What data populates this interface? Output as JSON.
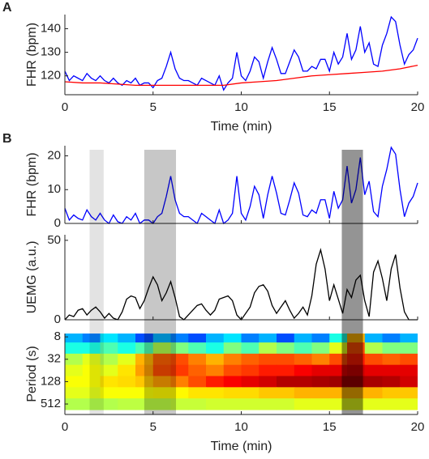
{
  "chart_data": [
    {
      "type": "line",
      "panel_label": "A",
      "ylabel": "FHR (bpm)",
      "xlabel": "Time (min)",
      "show_xtick_labels": true,
      "xlim": [
        0,
        20
      ],
      "xticks": [
        0,
        5,
        10,
        15,
        20
      ],
      "ylim": [
        112,
        146
      ],
      "yticks": [
        120,
        130,
        140
      ],
      "series": [
        {
          "color": "#0000ff",
          "x": [
            0,
            0.25,
            0.5,
            0.75,
            1,
            1.25,
            1.5,
            1.75,
            2,
            2.25,
            2.5,
            2.75,
            3,
            3.25,
            3.5,
            3.75,
            4,
            4.25,
            4.5,
            4.75,
            5,
            5.25,
            5.5,
            5.75,
            6,
            6.25,
            6.5,
            6.75,
            7,
            7.25,
            7.5,
            7.75,
            8,
            8.25,
            8.5,
            8.75,
            9,
            9.25,
            9.5,
            9.75,
            10,
            10.25,
            10.5,
            10.75,
            11,
            11.25,
            11.5,
            11.75,
            12,
            12.25,
            12.5,
            12.75,
            13,
            13.25,
            13.5,
            13.75,
            14,
            14.25,
            14.5,
            14.75,
            15,
            15.25,
            15.5,
            15.75,
            16,
            16.25,
            16.5,
            16.75,
            17,
            17.25,
            17.5,
            17.75,
            18,
            18.25,
            18.5,
            18.75,
            19,
            19.25,
            19.5,
            19.75,
            20
          ],
          "values": [
            122,
            118,
            120,
            119,
            118,
            121,
            119,
            118,
            120,
            118,
            117,
            119,
            117,
            116,
            118,
            117,
            119,
            116,
            117,
            117,
            115,
            118,
            119,
            124,
            130,
            123,
            119,
            118,
            118,
            117,
            116,
            119,
            118,
            117,
            116,
            120,
            114,
            117,
            119,
            130,
            120,
            118,
            122,
            128,
            126,
            119,
            126,
            132,
            127,
            121,
            121,
            126,
            131,
            128,
            122,
            122,
            124,
            123,
            127,
            127,
            122,
            130,
            125,
            128,
            138,
            127,
            131,
            141,
            130,
            134,
            125,
            124,
            133,
            138,
            145,
            143,
            133,
            125,
            129,
            131,
            136
          ]
        },
        {
          "color": "#ff0000",
          "x": [
            0,
            1,
            2,
            3,
            4,
            5,
            6,
            7,
            8,
            9,
            10,
            11,
            12,
            13,
            14,
            15,
            16,
            17,
            18,
            19,
            20
          ],
          "values": [
            117.5,
            117,
            117,
            116.5,
            116,
            116,
            116,
            116,
            116,
            116,
            117,
            117.5,
            118,
            119,
            120,
            120.5,
            121,
            121.5,
            122,
            123,
            124.5
          ]
        }
      ]
    },
    {
      "type": "line",
      "panel_label": "B",
      "ylabel": "FHR (bpm)",
      "show_xtick_labels": false,
      "xlim": [
        0,
        20
      ],
      "xticks": [
        0,
        5,
        10,
        15,
        20
      ],
      "ylim": [
        0,
        23
      ],
      "yticks": [
        0,
        10,
        20
      ],
      "highlights": [
        {
          "start": 1.4,
          "end": 2.2,
          "opacity": 0.11
        },
        {
          "start": 4.5,
          "end": 6.3,
          "opacity": 0.22
        },
        {
          "start": 15.7,
          "end": 16.9,
          "opacity": 0.42
        }
      ],
      "series": [
        {
          "color": "#0000ff",
          "x": [
            0,
            0.25,
            0.5,
            0.75,
            1,
            1.25,
            1.5,
            1.75,
            2,
            2.25,
            2.5,
            2.75,
            3,
            3.25,
            3.5,
            3.75,
            4,
            4.25,
            4.5,
            4.75,
            5,
            5.25,
            5.5,
            5.75,
            6,
            6.25,
            6.5,
            6.75,
            7,
            7.25,
            7.5,
            7.75,
            8,
            8.25,
            8.5,
            8.75,
            9,
            9.25,
            9.5,
            9.75,
            10,
            10.25,
            10.5,
            10.75,
            11,
            11.25,
            11.5,
            11.75,
            12,
            12.25,
            12.5,
            12.75,
            13,
            13.25,
            13.5,
            13.75,
            14,
            14.25,
            14.5,
            14.75,
            15,
            15.25,
            15.5,
            15.75,
            16,
            16.25,
            16.5,
            16.75,
            17,
            17.25,
            17.5,
            17.75,
            18,
            18.25,
            18.5,
            18.75,
            19,
            19.25,
            19.5,
            19.75,
            20
          ],
          "values": [
            4.5,
            1,
            2.5,
            1.5,
            1,
            4,
            2,
            1,
            3,
            1,
            0,
            2.5,
            0.5,
            0,
            2,
            1,
            3,
            0,
            1,
            1,
            0,
            2,
            3,
            8,
            14,
            7,
            3,
            2,
            2,
            1,
            0,
            3,
            2,
            1,
            0,
            4,
            0,
            1,
            3,
            14,
            3,
            1,
            5,
            11,
            8.5,
            1.5,
            8.5,
            14,
            9,
            3,
            2.5,
            7,
            12,
            9,
            2.5,
            2,
            4,
            3,
            7,
            7,
            1.5,
            9.5,
            4.5,
            7,
            17,
            6,
            10,
            19.5,
            8.5,
            12.5,
            3.5,
            2,
            11,
            16,
            22.5,
            20.5,
            10,
            2,
            6,
            8,
            12
          ]
        }
      ]
    },
    {
      "type": "line",
      "ylabel": "UEMG (a.u.)",
      "show_xtick_labels": false,
      "xlim": [
        0,
        20
      ],
      "xticks": [
        0,
        5,
        10,
        15,
        20
      ],
      "ylim": [
        0,
        53.5
      ],
      "yticks": [
        0,
        50
      ],
      "series": [
        {
          "color": "#000000",
          "x": [
            0,
            0.25,
            0.5,
            0.75,
            1,
            1.25,
            1.5,
            1.75,
            2,
            2.25,
            2.5,
            2.75,
            3,
            3.25,
            3.5,
            3.75,
            4,
            4.25,
            4.5,
            4.75,
            5,
            5.25,
            5.5,
            5.75,
            6,
            6.25,
            6.5,
            6.75,
            7,
            7.25,
            7.5,
            7.75,
            8,
            8.25,
            8.5,
            8.75,
            9,
            9.25,
            9.5,
            9.75,
            10,
            10.25,
            10.5,
            10.75,
            11,
            11.25,
            11.5,
            11.75,
            12,
            12.25,
            12.5,
            12.75,
            13,
            13.25,
            13.5,
            13.75,
            14,
            14.25,
            14.5,
            14.75,
            15,
            15.25,
            15.5,
            15.75,
            16,
            16.25,
            16.5,
            16.75,
            17,
            17.25,
            17.5,
            17.75,
            18,
            18.25,
            18.5,
            18.75,
            19,
            19.25,
            19.5,
            19.75,
            20
          ],
          "values": [
            0,
            3,
            2,
            6,
            7,
            3,
            6,
            8,
            5,
            1,
            4,
            1,
            0,
            5,
            13,
            15,
            14,
            7,
            12,
            20,
            27,
            22,
            12,
            17,
            24,
            14,
            2,
            0,
            3,
            6,
            9,
            10,
            6,
            3,
            6,
            13,
            14,
            15,
            12,
            3,
            0,
            4,
            8,
            17,
            21,
            22,
            18,
            9,
            4,
            8,
            12,
            6,
            1,
            4,
            8,
            3,
            15,
            35,
            44,
            32,
            12,
            22,
            13,
            4,
            19,
            14,
            25,
            28,
            12,
            2,
            30,
            37,
            26,
            12,
            32,
            41,
            20,
            5,
            0,
            0,
            0
          ]
        }
      ]
    },
    {
      "type": "heatmap",
      "ylabel": "Period (s)",
      "xlabel": "Time (min)",
      "show_xtick_labels": true,
      "log": true,
      "yreverse": true,
      "xlim": [
        0,
        20
      ],
      "xticks": [
        0,
        5,
        10,
        15,
        20
      ],
      "ylim": [
        6.5,
        980
      ],
      "yticks": [
        8,
        32,
        128,
        512
      ],
      "x_edges": [
        0,
        1,
        2,
        3,
        4,
        5,
        6,
        7,
        8,
        9,
        10,
        11,
        12,
        13,
        14,
        15,
        16,
        17,
        18,
        19,
        20
      ],
      "periods": [
        8,
        16,
        32,
        64,
        128,
        256,
        512
      ],
      "z": [
        [
          0.3,
          0.25,
          0.35,
          0.3,
          0.2,
          0.3,
          0.25,
          0.2,
          0.3,
          0.35,
          0.25,
          0.3,
          0.2,
          0.3,
          0.25,
          0.4,
          0.7,
          0.3,
          0.25,
          0.3
        ],
        [
          0.4,
          0.4,
          0.45,
          0.4,
          0.45,
          0.55,
          0.5,
          0.45,
          0.4,
          0.5,
          0.45,
          0.55,
          0.5,
          0.45,
          0.5,
          0.6,
          0.8,
          0.55,
          0.5,
          0.5
        ],
        [
          0.55,
          0.6,
          0.55,
          0.6,
          0.7,
          0.78,
          0.8,
          0.75,
          0.7,
          0.75,
          0.78,
          0.8,
          0.8,
          0.78,
          0.75,
          0.8,
          0.85,
          0.8,
          0.78,
          0.8
        ],
        [
          0.6,
          0.62,
          0.6,
          0.65,
          0.72,
          0.8,
          0.82,
          0.78,
          0.75,
          0.8,
          0.82,
          0.85,
          0.85,
          0.88,
          0.9,
          0.9,
          0.92,
          0.9,
          0.9,
          0.9
        ],
        [
          0.62,
          0.62,
          0.65,
          0.66,
          0.68,
          0.72,
          0.75,
          0.8,
          0.85,
          0.88,
          0.9,
          0.92,
          0.95,
          0.95,
          0.96,
          0.97,
          0.97,
          0.96,
          0.95,
          0.92
        ],
        [
          0.6,
          0.6,
          0.62,
          0.62,
          0.62,
          0.63,
          0.63,
          0.65,
          0.65,
          0.66,
          0.66,
          0.68,
          0.68,
          0.7,
          0.7,
          0.7,
          0.7,
          0.7,
          0.68,
          0.68
        ],
        [
          0.55,
          0.55,
          0.55,
          0.56,
          0.56,
          0.56,
          0.57,
          0.57,
          0.58,
          0.58,
          0.58,
          0.58,
          0.58,
          0.6,
          0.6,
          0.6,
          0.6,
          0.6,
          0.6,
          0.6
        ]
      ]
    }
  ]
}
